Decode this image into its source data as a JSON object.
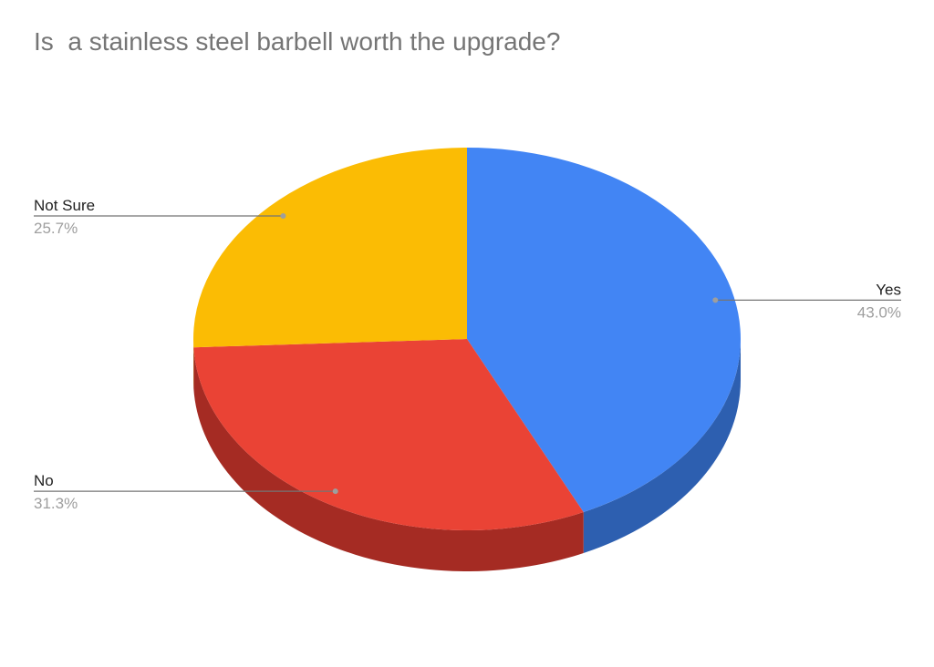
{
  "chart_data": {
    "type": "pie",
    "style": "3d",
    "title": "Is  a stainless steel barbell worth the upgrade?",
    "start_angle": "12 o'clock, clockwise",
    "slices": [
      {
        "label": "Yes",
        "value": 43.0,
        "display": "43.0%",
        "color": "#4285f4",
        "side_color": "#2d5fb0",
        "label_side": "right"
      },
      {
        "label": "No",
        "value": 31.3,
        "display": "31.3%",
        "color": "#ea4335",
        "side_color": "#a52b23",
        "label_side": "left"
      },
      {
        "label": "Not Sure",
        "value": 25.7,
        "display": "25.7%",
        "color": "#fbbc04",
        "side_color": "#b08403",
        "label_side": "left"
      }
    ],
    "legend": "labels with leader lines"
  }
}
